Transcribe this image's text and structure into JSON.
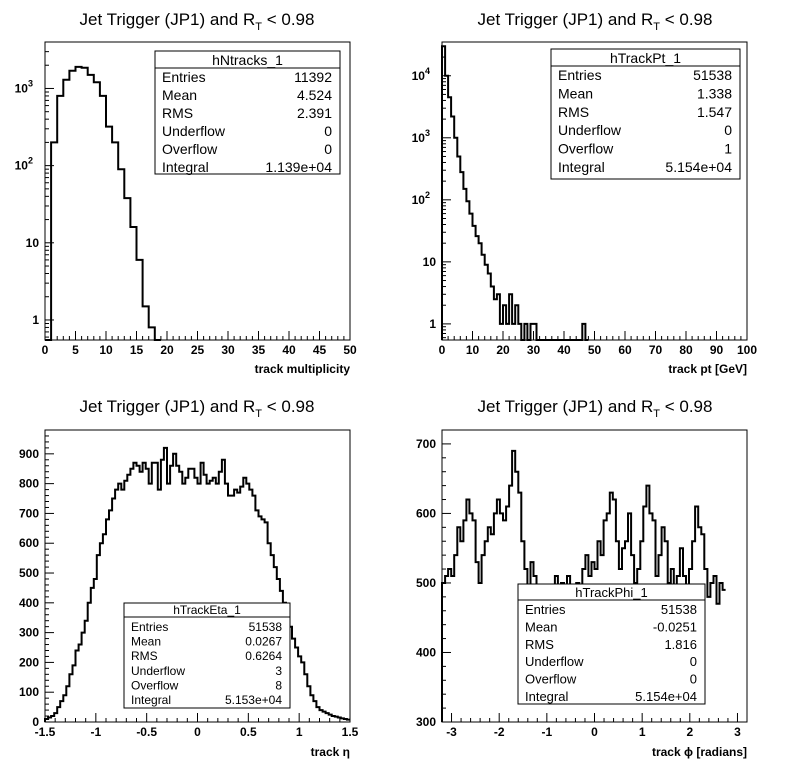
{
  "chart_data": [
    {
      "type": "histogram",
      "title_main": "Jet Trigger (JP1) and R",
      "title_sub": "T",
      "title_tail": " < 0.98",
      "xlabel": "track multiplicity",
      "xlim": [
        0,
        50
      ],
      "xticks": [
        "0",
        "5",
        "10",
        "15",
        "20",
        "25",
        "30",
        "35",
        "40",
        "45",
        "50"
      ],
      "ylog": true,
      "ylim": [
        0.55,
        4000
      ],
      "yticks": [
        {
          "label": "1",
          "power": ""
        },
        {
          "label": "10",
          "power": ""
        },
        {
          "label": "10",
          "power": "2"
        },
        {
          "label": "10",
          "power": "3"
        }
      ],
      "bins": {
        "start": 0,
        "width": 1,
        "values": [
          0.55,
          200,
          800,
          1300,
          1700,
          1900,
          1850,
          1500,
          1200,
          800,
          320,
          200,
          90,
          38,
          16,
          6,
          1.5,
          0.8,
          0.55
        ]
      },
      "stats": {
        "title": "hNtracks_1",
        "rows": [
          [
            "Entries",
            "11392"
          ],
          [
            "Mean",
            "4.524"
          ],
          [
            "RMS",
            "2.391"
          ],
          [
            "Underflow",
            "0"
          ],
          [
            "Overflow",
            "0"
          ],
          [
            "Integral",
            "1.139e+04"
          ]
        ]
      }
    },
    {
      "type": "histogram",
      "title_main": "Jet Trigger (JP1) and R",
      "title_sub": "T",
      "title_tail": " < 0.98",
      "xlabel": "track pt [GeV]",
      "xlim": [
        0,
        100
      ],
      "xticks": [
        "0",
        "10",
        "20",
        "30",
        "40",
        "50",
        "60",
        "70",
        "80",
        "90",
        "100"
      ],
      "ylog": true,
      "ylim": [
        0.55,
        35000
      ],
      "yticks": [
        {
          "label": "1",
          "power": ""
        },
        {
          "label": "10",
          "power": ""
        },
        {
          "label": "10",
          "power": "2"
        },
        {
          "label": "10",
          "power": "3"
        },
        {
          "label": "10",
          "power": "4"
        }
      ],
      "bins": {
        "start": 0,
        "width": 1,
        "values": [
          30000,
          10000,
          4500,
          2200,
          1000,
          500,
          280,
          150,
          95,
          60,
          38,
          26,
          20,
          13,
          9,
          6.5,
          4,
          2.5,
          3,
          1,
          2,
          1,
          3,
          1,
          2,
          1,
          0.55,
          1,
          0.55,
          1,
          1,
          0.55,
          0.55,
          0.55,
          0.55,
          0.55,
          0.55,
          0.55,
          0.55,
          0.55,
          0.55,
          0.55,
          0.55,
          0.55,
          0.55,
          0.55,
          1,
          0.55
        ]
      },
      "stats": {
        "title": "hTrackPt_1",
        "rows": [
          [
            "Entries",
            "51538"
          ],
          [
            "Mean",
            "1.338"
          ],
          [
            "RMS",
            "1.547"
          ],
          [
            "Underflow",
            "0"
          ],
          [
            "Overflow",
            "1"
          ],
          [
            "Integral",
            "5.154e+04"
          ]
        ]
      }
    },
    {
      "type": "histogram",
      "title_main": "Jet Trigger (JP1) and R",
      "title_sub": "T",
      "title_tail": " < 0.98",
      "xlabel": "track η",
      "xlim": [
        -1.5,
        1.5
      ],
      "xticks": [
        "-1.5",
        "-1",
        "-0.5",
        "0",
        "0.5",
        "1",
        "1.5"
      ],
      "ylog": false,
      "ylim": [
        0,
        980
      ],
      "yticks": [
        {
          "label": "0"
        },
        {
          "label": "100"
        },
        {
          "label": "200"
        },
        {
          "label": "300"
        },
        {
          "label": "400"
        },
        {
          "label": "500"
        },
        {
          "label": "600"
        },
        {
          "label": "700"
        },
        {
          "label": "800"
        },
        {
          "label": "900"
        }
      ],
      "bins": {
        "start": -1.5,
        "width": 0.03,
        "values": [
          10,
          15,
          20,
          30,
          50,
          70,
          90,
          120,
          160,
          190,
          240,
          260,
          300,
          340,
          400,
          450,
          480,
          560,
          600,
          630,
          680,
          710,
          750,
          780,
          800,
          780,
          810,
          830,
          850,
          870,
          860,
          840,
          870,
          850,
          800,
          870,
          870,
          780,
          880,
          920,
          800,
          860,
          900,
          860,
          840,
          800,
          820,
          850,
          850,
          820,
          800,
          870,
          830,
          800,
          810,
          820,
          800,
          840,
          880,
          800,
          760,
          760,
          780,
          770,
          790,
          820,
          800,
          780,
          760,
          710,
          690,
          680,
          670,
          600,
          560,
          520,
          480,
          440,
          400,
          370,
          320,
          280,
          250,
          220,
          200,
          160,
          120,
          90,
          70,
          50,
          40,
          35,
          30,
          25,
          20,
          18,
          15,
          12,
          10,
          8
        ]
      },
      "stats": {
        "title": "hTrackEta_1",
        "rows": [
          [
            "Entries",
            "51538"
          ],
          [
            "Mean",
            "0.0267"
          ],
          [
            "RMS",
            "0.6264"
          ],
          [
            "Underflow",
            "3"
          ],
          [
            "Overflow",
            "8"
          ],
          [
            "Integral",
            "5.153e+04"
          ]
        ]
      }
    },
    {
      "type": "histogram",
      "title_main": "Jet Trigger (JP1) and R",
      "title_sub": "T",
      "title_tail": " < 0.98",
      "xlabel": "track ϕ [radians]",
      "xlim": [
        -3.2,
        3.2
      ],
      "xticks": [
        "-3",
        "-2",
        "-1",
        "0",
        "1",
        "2",
        "3"
      ],
      "ylog": false,
      "ylim": [
        300,
        720
      ],
      "yticks": [
        {
          "label": "300"
        },
        {
          "label": "400"
        },
        {
          "label": "500"
        },
        {
          "label": "600"
        },
        {
          "label": "700"
        }
      ],
      "bins": {
        "start": -3.2,
        "width": 0.064,
        "values": [
          500,
          510,
          520,
          510,
          540,
          580,
          560,
          590,
          620,
          600,
          590,
          530,
          500,
          540,
          560,
          580,
          570,
          600,
          620,
          600,
          590,
          610,
          640,
          690,
          660,
          630,
          560,
          520,
          480,
          530,
          510,
          480,
          450,
          420,
          390,
          410,
          430,
          510,
          460,
          500,
          480,
          510,
          440,
          470,
          500,
          480,
          520,
          540,
          510,
          530,
          520,
          560,
          540,
          590,
          600,
          630,
          620,
          560,
          520,
          550,
          560,
          600,
          540,
          500,
          520,
          560,
          610,
          640,
          600,
          590,
          510,
          540,
          580,
          560,
          500,
          520,
          480,
          510,
          550,
          510,
          490,
          520,
          560,
          610,
          580,
          570,
          520,
          480,
          500,
          510,
          470,
          500,
          490
        ]
      },
      "stats": {
        "title": "hTrackPhi_1",
        "rows": [
          [
            "Entries",
            "51538"
          ],
          [
            "Mean",
            "-0.0251"
          ],
          [
            "RMS",
            "1.816"
          ],
          [
            "Underflow",
            "0"
          ],
          [
            "Overflow",
            "0"
          ],
          [
            "Integral",
            "5.154e+04"
          ]
        ]
      }
    }
  ]
}
